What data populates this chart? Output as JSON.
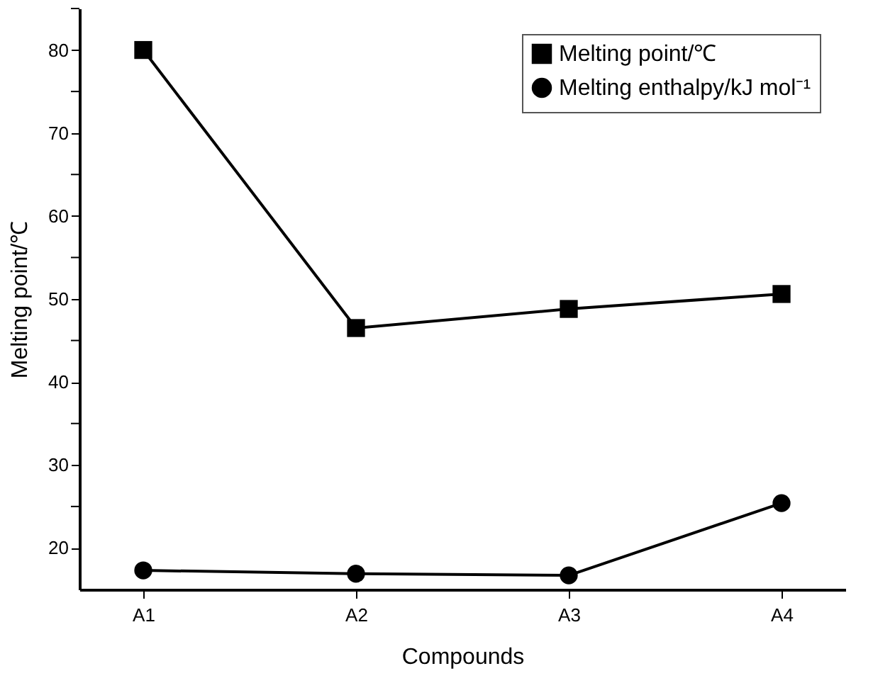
{
  "chart_data": {
    "type": "line",
    "xlabel": "Compounds",
    "ylabel": "Melting point/℃",
    "categories": [
      "A1",
      "A2",
      "A3",
      "A4"
    ],
    "series": [
      {
        "name": "Melting point/℃",
        "color": "#000000",
        "marker": "square",
        "values": [
          80,
          46.5,
          48.8,
          50.6
        ]
      },
      {
        "name": "Melting enthalpy/kJ mol⁻¹",
        "color": "#000000",
        "marker": "circle",
        "values": [
          17.3,
          16.9,
          16.7,
          25.4
        ]
      }
    ],
    "ylim": [
      15,
      85
    ],
    "yticks": [
      20,
      {
        "value": 25,
        "label": null
      },
      30,
      {
        "value": 35,
        "label": null
      },
      40,
      {
        "value": 45,
        "label": null
      },
      50,
      {
        "value": 55,
        "label": null
      },
      60,
      {
        "value": 65,
        "label": null
      },
      70,
      {
        "value": 75,
        "label": null
      },
      80,
      {
        "value": 85,
        "label": null
      }
    ],
    "grid": false,
    "legend": "top right",
    "line_style": "solid"
  }
}
